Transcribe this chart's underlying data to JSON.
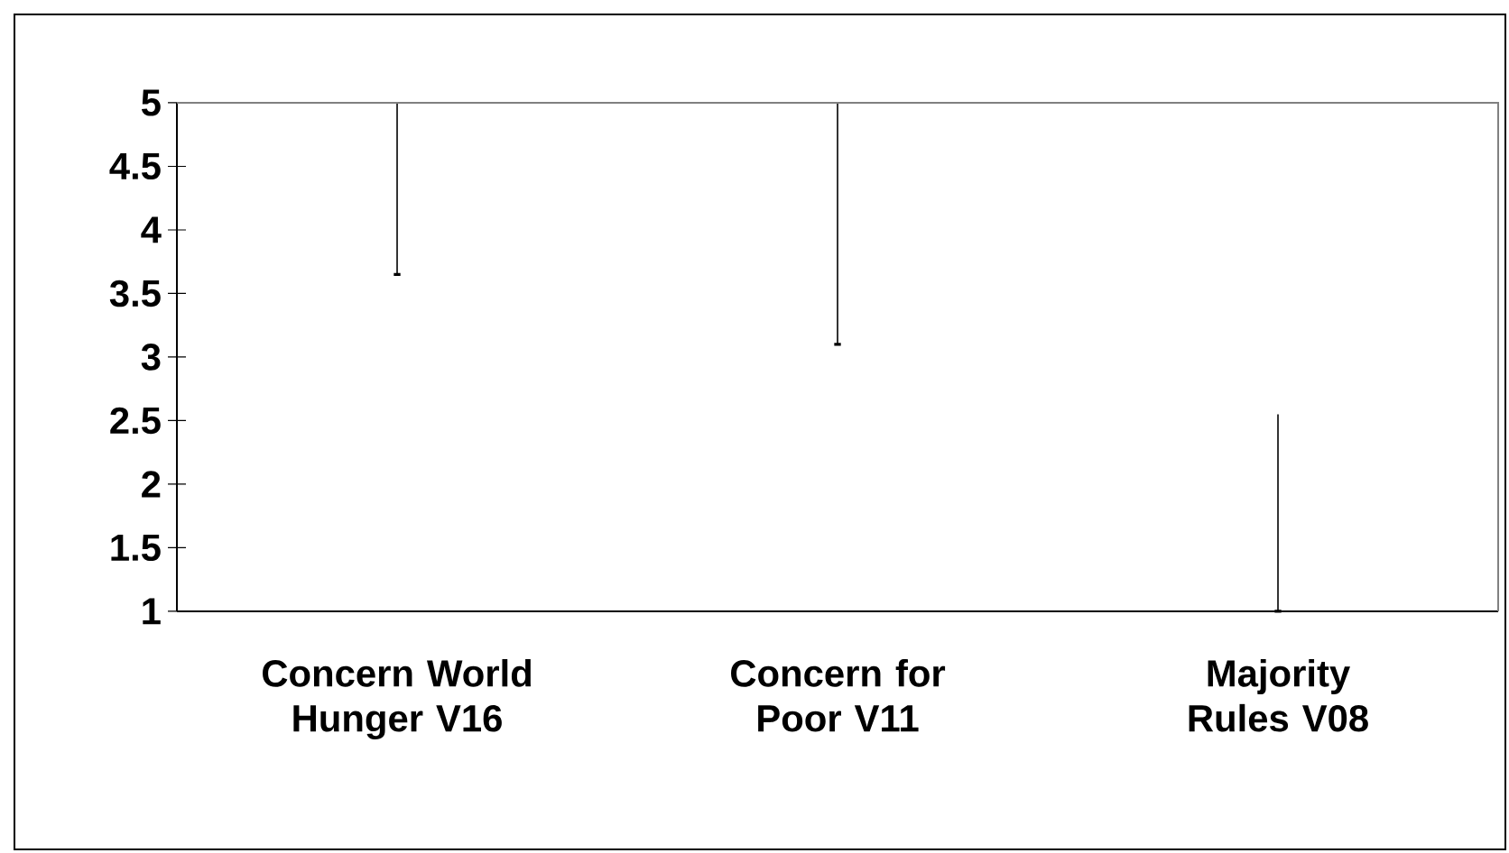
{
  "chart_data": {
    "type": "candlestick",
    "categories": [
      "Concern World Hunger V16",
      "Concern for Poor V11",
      "Majority Rules V08"
    ],
    "ohlc": [
      [
        3.65,
        5,
        3.65,
        3.65
      ],
      [
        3.1,
        5,
        3.1,
        3.1
      ],
      [
        1,
        2.55,
        1,
        1
      ]
    ],
    "color": "#000000",
    "ylim": [
      1,
      5
    ],
    "yticks": [
      1,
      1.5,
      2,
      2.5,
      3,
      3.5,
      4,
      4.5,
      5
    ]
  }
}
